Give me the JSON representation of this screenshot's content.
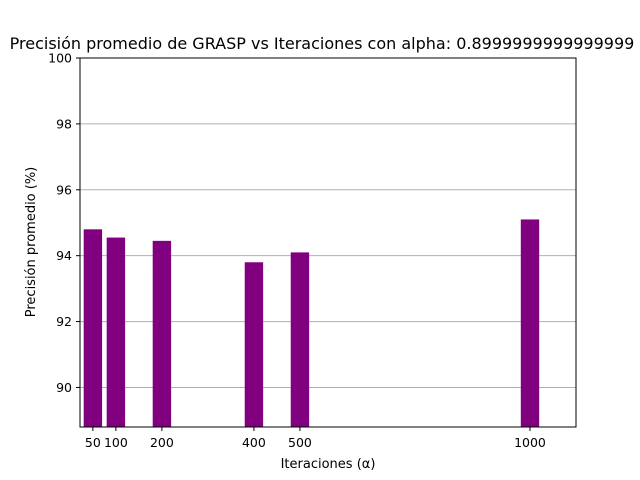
{
  "chart_data": {
    "type": "bar",
    "title": "Precisión promedio de GRASP vs Iteraciones con alpha: 0.8999999999999999",
    "xlabel": "Iteraciones (α)",
    "ylabel": "Precisión promedio (%)",
    "x": [
      50,
      100,
      200,
      400,
      500,
      1000
    ],
    "x_tick_labels": [
      "50",
      "100",
      "200",
      "400",
      "500",
      "1000"
    ],
    "values": [
      94.8,
      94.55,
      94.45,
      93.8,
      94.1,
      95.1
    ],
    "bar_width": 40,
    "xlim": [
      22,
      1100
    ],
    "ylim": [
      88.8,
      100
    ],
    "y_ticks": [
      90,
      92,
      94,
      96,
      98,
      100
    ],
    "y_tick_labels": [
      "90",
      "92",
      "94",
      "96",
      "98",
      "100"
    ],
    "grid": "y",
    "legend": "none",
    "colors": {
      "bar": "#800080",
      "grid": "#b0b0b0",
      "axis": "#000000"
    }
  }
}
